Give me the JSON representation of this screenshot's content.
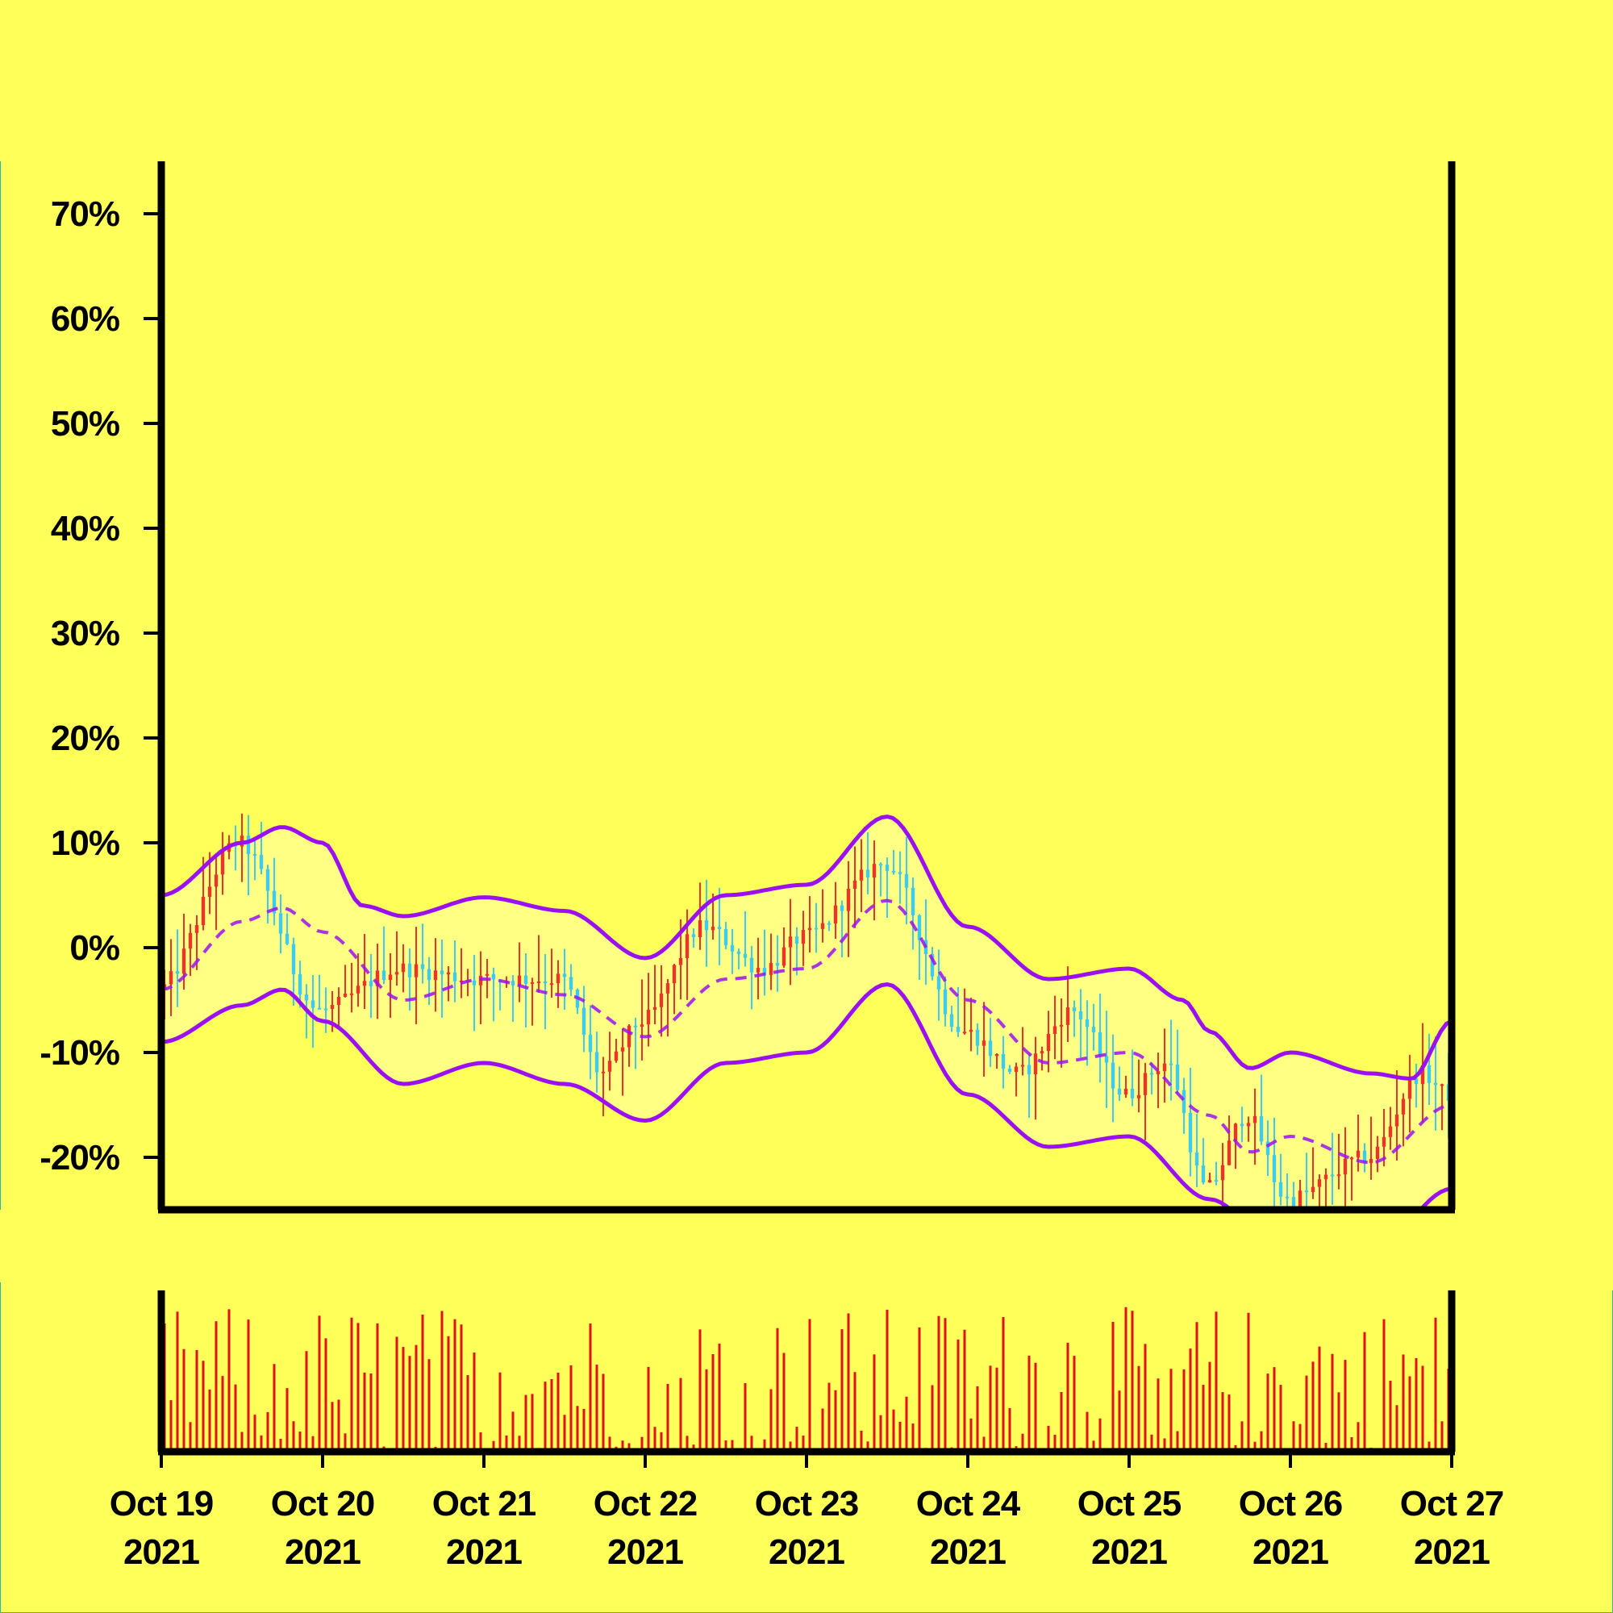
{
  "chart_data": {
    "type": "candlestick",
    "background": "#ffff5a",
    "colors": {
      "up": "#e8352a",
      "down": "#3ec9f0",
      "bands": "#9b10f0",
      "band_fill": "#ffff8c",
      "volume": "#e01010",
      "axis": "#000000"
    },
    "y_axis": {
      "ticks": [
        "70%",
        "60%",
        "50%",
        "40%",
        "30%",
        "20%",
        "10%",
        "0%",
        "-10%",
        "-20%"
      ],
      "tick_values": [
        70,
        60,
        50,
        40,
        30,
        20,
        10,
        0,
        -10,
        -20
      ],
      "range": [
        -25,
        75
      ]
    },
    "x_axis": {
      "ticks": [
        {
          "date": "Oct 19",
          "year": "2021"
        },
        {
          "date": "Oct 20",
          "year": "2021"
        },
        {
          "date": "Oct 21",
          "year": "2021"
        },
        {
          "date": "Oct 22",
          "year": "2021"
        },
        {
          "date": "Oct 23",
          "year": "2021"
        },
        {
          "date": "Oct 24",
          "year": "2021"
        },
        {
          "date": "Oct 25",
          "year": "2021"
        },
        {
          "date": "Oct 26",
          "year": "2021"
        },
        {
          "date": "Oct 27",
          "year": "2021"
        }
      ],
      "range": [
        "2021-10-19",
        "2021-10-27"
      ]
    },
    "series_shape": {
      "price_keypoints": [
        {
          "date": "2021-10-19 00:00",
          "value": -4
        },
        {
          "date": "2021-10-19 12:00",
          "value": 10
        },
        {
          "date": "2021-10-20 00:00",
          "value": -6
        },
        {
          "date": "2021-10-20 12:00",
          "value": -2
        },
        {
          "date": "2021-10-21 00:00",
          "value": -3
        },
        {
          "date": "2021-10-21 12:00",
          "value": -3
        },
        {
          "date": "2021-10-21 18:00",
          "value": -12
        },
        {
          "date": "2021-10-22 00:00",
          "value": -7
        },
        {
          "date": "2021-10-22 09:00",
          "value": 2
        },
        {
          "date": "2021-10-22 18:00",
          "value": -2
        },
        {
          "date": "2021-10-23 00:00",
          "value": 1
        },
        {
          "date": "2021-10-23 12:00",
          "value": 8
        },
        {
          "date": "2021-10-24 00:00",
          "value": -8
        },
        {
          "date": "2021-10-24 08:00",
          "value": -12
        },
        {
          "date": "2021-10-24 16:00",
          "value": -6
        },
        {
          "date": "2021-10-25 00:00",
          "value": -14
        },
        {
          "date": "2021-10-25 06:00",
          "value": -11
        },
        {
          "date": "2021-10-25 12:00",
          "value": -23
        },
        {
          "date": "2021-10-25 18:00",
          "value": -16
        },
        {
          "date": "2021-10-26 00:00",
          "value": -24
        },
        {
          "date": "2021-10-26 12:00",
          "value": -20
        },
        {
          "date": "2021-10-26 20:00",
          "value": -12
        },
        {
          "date": "2021-10-27 00:00",
          "value": -14
        }
      ],
      "upper_band_keypoints": [
        {
          "date": "2021-10-19 00:00",
          "value": 5
        },
        {
          "date": "2021-10-19 12:00",
          "value": 10
        },
        {
          "date": "2021-10-19 18:00",
          "value": 11.5
        },
        {
          "date": "2021-10-20 00:00",
          "value": 10
        },
        {
          "date": "2021-10-20 06:00",
          "value": 4
        },
        {
          "date": "2021-10-20 12:00",
          "value": 3
        },
        {
          "date": "2021-10-21 00:00",
          "value": 4.8
        },
        {
          "date": "2021-10-21 12:00",
          "value": 3.5
        },
        {
          "date": "2021-10-22 00:00",
          "value": -1
        },
        {
          "date": "2021-10-22 12:00",
          "value": 5
        },
        {
          "date": "2021-10-23 00:00",
          "value": 6
        },
        {
          "date": "2021-10-23 12:00",
          "value": 12.5
        },
        {
          "date": "2021-10-24 00:00",
          "value": 2
        },
        {
          "date": "2021-10-24 12:00",
          "value": -3
        },
        {
          "date": "2021-10-25 00:00",
          "value": -2
        },
        {
          "date": "2021-10-25 08:00",
          "value": -5
        },
        {
          "date": "2021-10-25 12:00",
          "value": -8
        },
        {
          "date": "2021-10-25 18:00",
          "value": -11.5
        },
        {
          "date": "2021-10-26 00:00",
          "value": -10
        },
        {
          "date": "2021-10-26 12:00",
          "value": -12
        },
        {
          "date": "2021-10-26 18:00",
          "value": -12.5
        },
        {
          "date": "2021-10-27 00:00",
          "value": -7
        }
      ],
      "middle_band_keypoints": [
        {
          "date": "2021-10-19 00:00",
          "value": -4
        },
        {
          "date": "2021-10-19 12:00",
          "value": 2.5
        },
        {
          "date": "2021-10-19 18:00",
          "value": 3.8
        },
        {
          "date": "2021-10-20 00:00",
          "value": 1.5
        },
        {
          "date": "2021-10-20 12:00",
          "value": -5
        },
        {
          "date": "2021-10-21 00:00",
          "value": -3
        },
        {
          "date": "2021-10-21 12:00",
          "value": -4.5
        },
        {
          "date": "2021-10-22 00:00",
          "value": -8.5
        },
        {
          "date": "2021-10-22 12:00",
          "value": -3
        },
        {
          "date": "2021-10-23 00:00",
          "value": -2
        },
        {
          "date": "2021-10-23 12:00",
          "value": 4.5
        },
        {
          "date": "2021-10-24 00:00",
          "value": -5
        },
        {
          "date": "2021-10-24 12:00",
          "value": -11
        },
        {
          "date": "2021-10-25 00:00",
          "value": -10
        },
        {
          "date": "2021-10-25 12:00",
          "value": -16
        },
        {
          "date": "2021-10-25 18:00",
          "value": -19.5
        },
        {
          "date": "2021-10-26 00:00",
          "value": -18
        },
        {
          "date": "2021-10-26 12:00",
          "value": -20.5
        },
        {
          "date": "2021-10-27 00:00",
          "value": -15
        }
      ],
      "lower_band_keypoints": [
        {
          "date": "2021-10-19 00:00",
          "value": -9
        },
        {
          "date": "2021-10-19 12:00",
          "value": -5.5
        },
        {
          "date": "2021-10-19 18:00",
          "value": -4
        },
        {
          "date": "2021-10-20 00:00",
          "value": -7
        },
        {
          "date": "2021-10-20 12:00",
          "value": -13
        },
        {
          "date": "2021-10-21 00:00",
          "value": -11
        },
        {
          "date": "2021-10-21 12:00",
          "value": -13
        },
        {
          "date": "2021-10-22 00:00",
          "value": -16.5
        },
        {
          "date": "2021-10-22 12:00",
          "value": -11
        },
        {
          "date": "2021-10-23 00:00",
          "value": -10
        },
        {
          "date": "2021-10-23 12:00",
          "value": -3.5
        },
        {
          "date": "2021-10-24 00:00",
          "value": -14
        },
        {
          "date": "2021-10-24 12:00",
          "value": -19
        },
        {
          "date": "2021-10-25 00:00",
          "value": -18
        },
        {
          "date": "2021-10-25 12:00",
          "value": -24
        },
        {
          "date": "2021-10-26 00:00",
          "value": -30
        },
        {
          "date": "2021-10-26 12:00",
          "value": -29
        },
        {
          "date": "2021-10-27 00:00",
          "value": -23
        }
      ]
    },
    "volume": {
      "bar_count": 200,
      "relative_range": [
        0,
        1
      ]
    },
    "candle_count": 200
  }
}
